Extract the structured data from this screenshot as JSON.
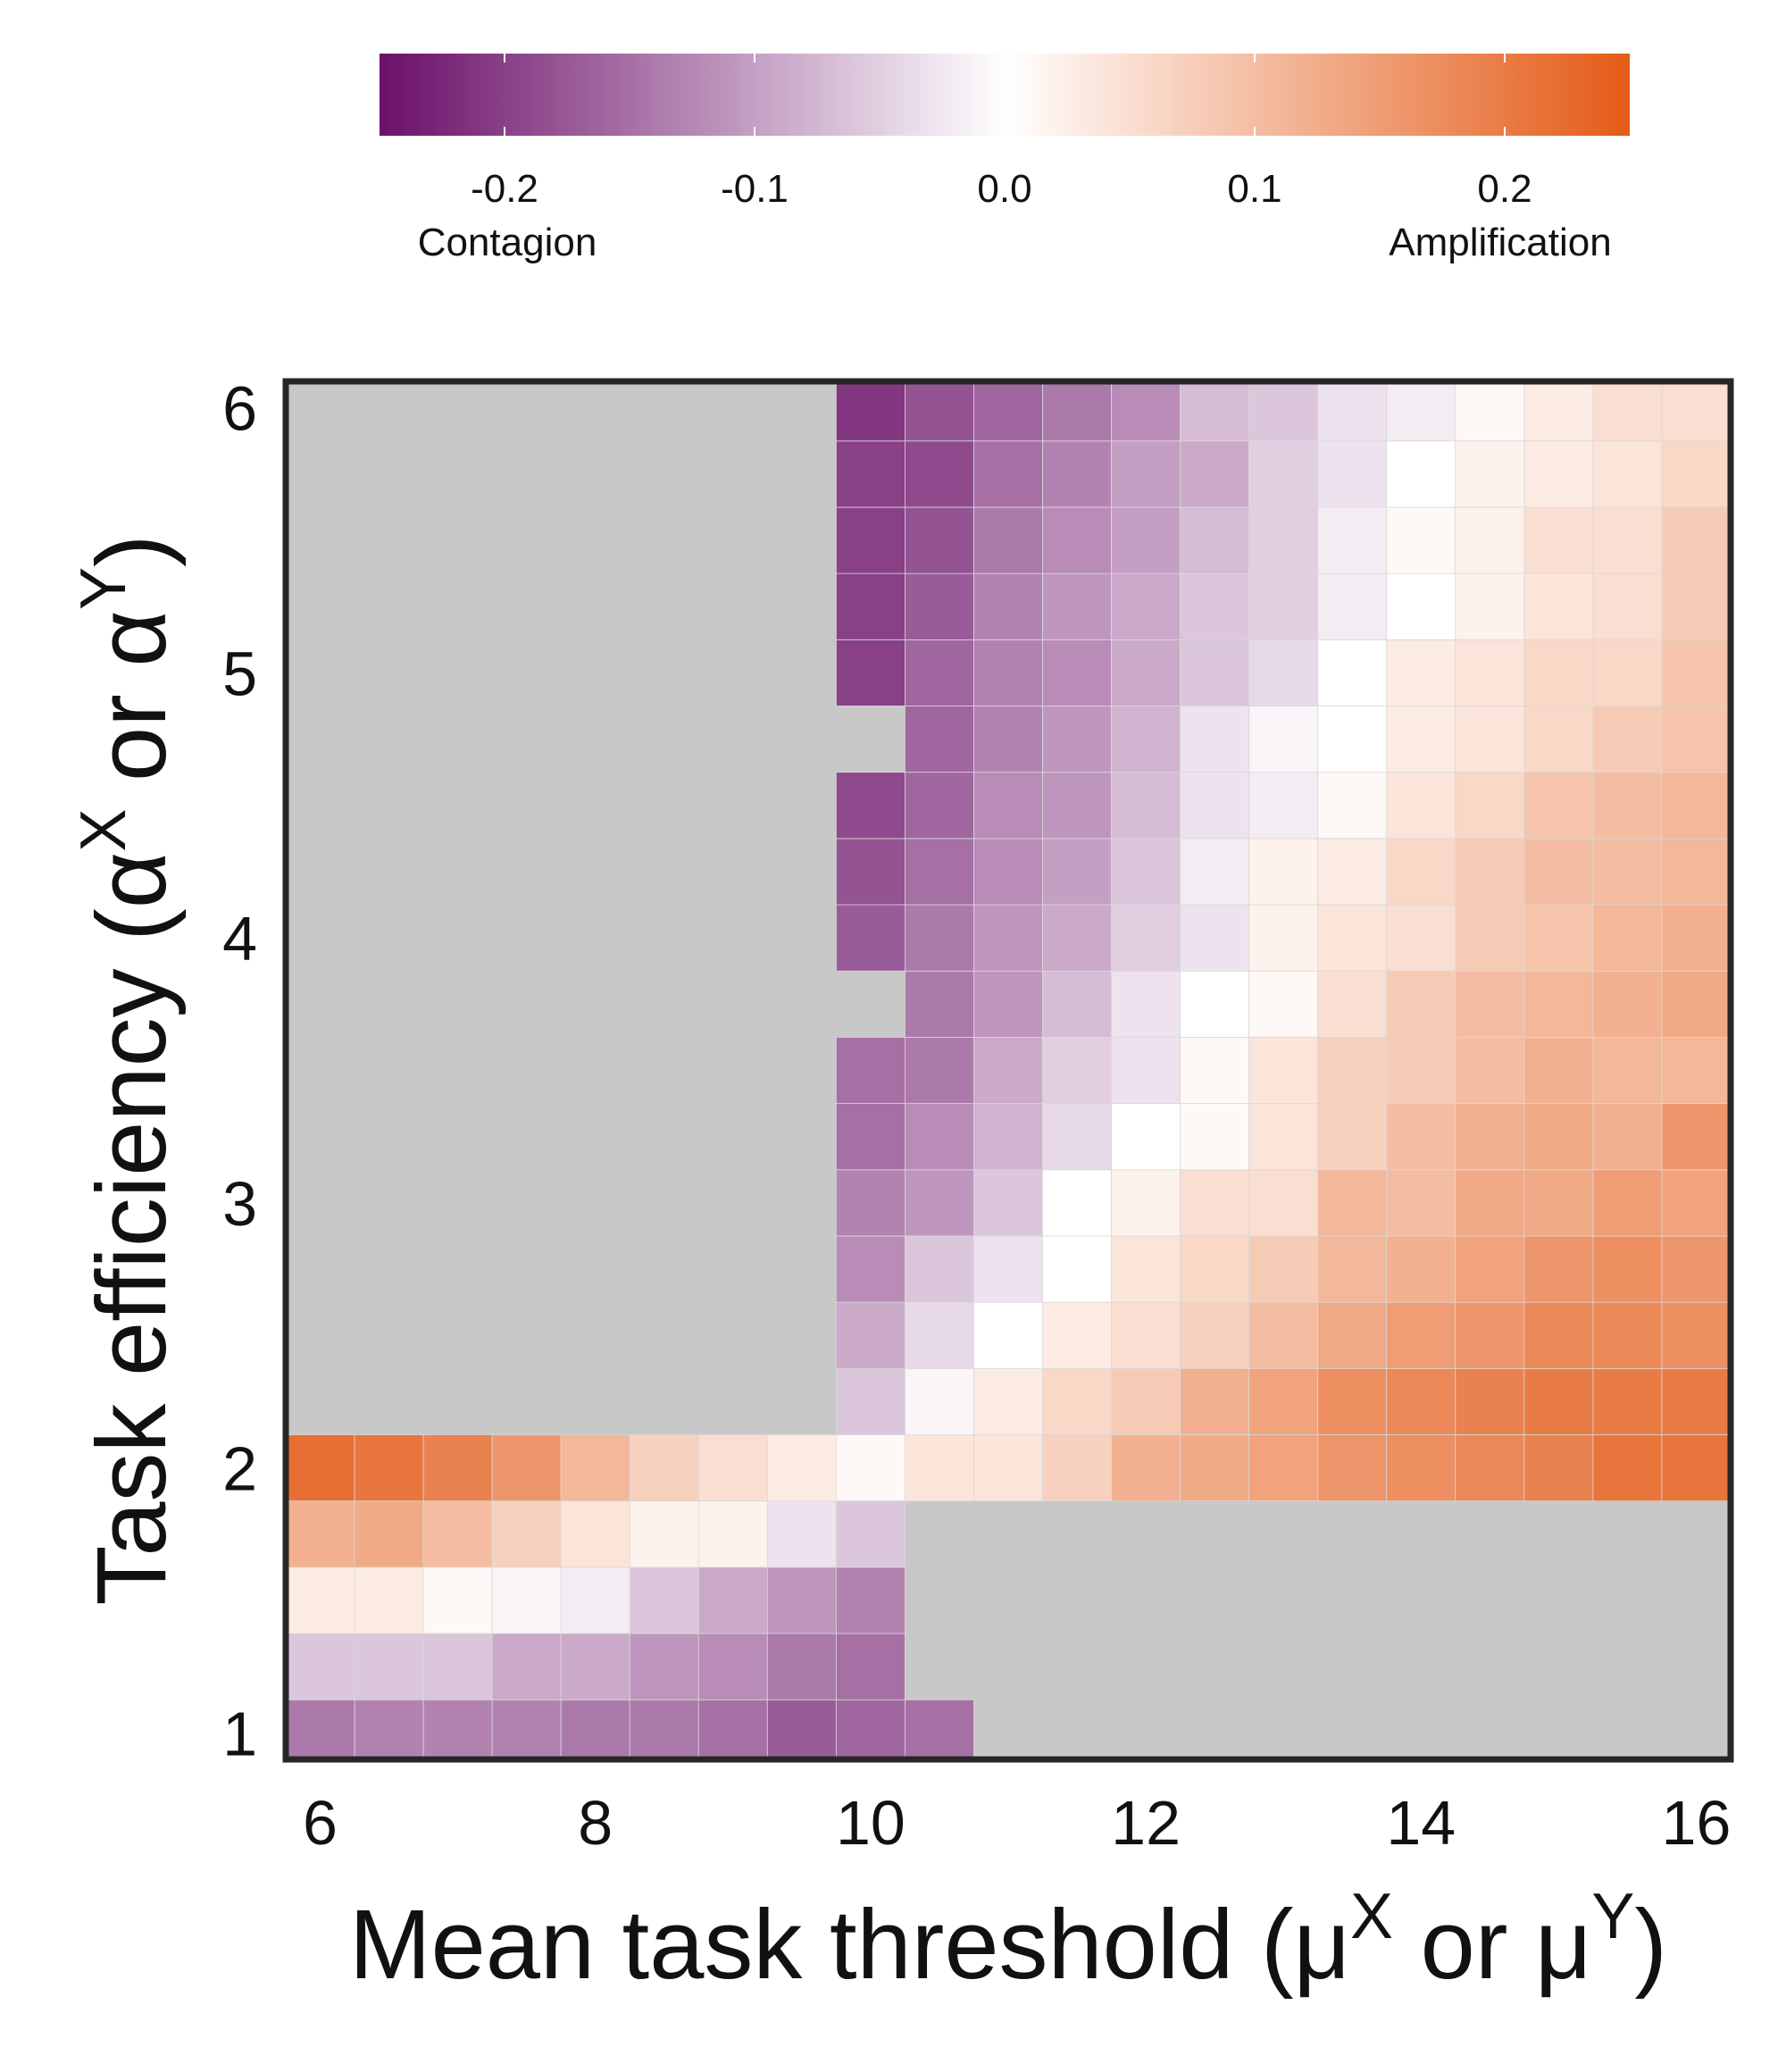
{
  "chart_data": {
    "type": "heatmap",
    "xlabel": "Mean task threshold (μX or μY)",
    "ylabel": "Task efficiency (αX or αY)",
    "x_ticks": [
      "6",
      "8",
      "10",
      "12",
      "14",
      "16"
    ],
    "y_ticks": [
      "1",
      "2",
      "3",
      "4",
      "5",
      "6"
    ],
    "xlim": [
      5.75,
      16.25
    ],
    "ylim": [
      0.9,
      6.1
    ],
    "x_values": [
      6,
      6.5,
      7,
      7.5,
      8,
      8.5,
      9,
      9.5,
      10,
      10.5,
      11,
      11.5,
      12,
      12.5,
      13,
      13.5,
      14,
      14.5,
      15,
      15.5,
      16
    ],
    "y_values": [
      1,
      1.25,
      1.5,
      1.75,
      2,
      2.25,
      2.5,
      2.75,
      3,
      3.25,
      3.5,
      3.75,
      4,
      4.25,
      4.5,
      4.75,
      5,
      5.25,
      5.5,
      5.75,
      6
    ],
    "missing_color": "#c8c8c8",
    "colorbar": {
      "range": [
        -0.25,
        0.25
      ],
      "ticks": [
        "-0.2",
        "-0.1",
        "0.0",
        "0.1",
        "0.2"
      ],
      "tick_values": [
        -0.2,
        -0.1,
        0.0,
        0.1,
        0.2
      ],
      "low_label": "Contagion",
      "high_label": "Amplification",
      "low_color": "#6b1069",
      "mid_color": "#ffffff",
      "high_color": "#e45b17"
    },
    "z": [
      [
        -0.14,
        -0.13,
        -0.13,
        -0.13,
        -0.14,
        -0.14,
        -0.15,
        -0.17,
        -0.16,
        -0.15,
        null,
        null,
        null,
        null,
        null,
        null,
        null,
        null,
        null,
        null,
        null
      ],
      [
        -0.06,
        -0.06,
        -0.06,
        -0.09,
        -0.09,
        -0.11,
        -0.12,
        -0.14,
        -0.15,
        null,
        null,
        null,
        null,
        null,
        null,
        null,
        null,
        null,
        null,
        null,
        null
      ],
      [
        0.03,
        0.03,
        0.01,
        -0.01,
        -0.02,
        -0.06,
        -0.09,
        -0.11,
        -0.13,
        null,
        null,
        null,
        null,
        null,
        null,
        null,
        null,
        null,
        null,
        null,
        null
      ],
      [
        0.12,
        0.13,
        0.1,
        0.07,
        0.04,
        0.02,
        0.02,
        -0.03,
        -0.06,
        null,
        null,
        null,
        null,
        null,
        null,
        null,
        null,
        null,
        null,
        null,
        null
      ],
      [
        0.22,
        0.21,
        0.19,
        0.16,
        0.11,
        0.07,
        0.05,
        0.03,
        0.01,
        0.04,
        0.04,
        0.07,
        0.12,
        0.13,
        0.14,
        0.16,
        0.17,
        0.18,
        0.19,
        0.21,
        0.21
      ],
      [
        null,
        null,
        null,
        null,
        null,
        null,
        null,
        null,
        -0.06,
        -0.01,
        0.03,
        0.06,
        0.08,
        0.12,
        0.14,
        0.17,
        0.18,
        0.19,
        0.2,
        0.2,
        0.2
      ],
      [
        null,
        null,
        null,
        null,
        null,
        null,
        null,
        null,
        -0.09,
        -0.04,
        0.0,
        0.03,
        0.05,
        0.07,
        0.1,
        0.13,
        0.15,
        0.16,
        0.18,
        0.18,
        0.17
      ],
      [
        null,
        null,
        null,
        null,
        null,
        null,
        null,
        null,
        -0.12,
        -0.06,
        -0.03,
        0.0,
        0.04,
        0.06,
        0.08,
        0.11,
        0.12,
        0.14,
        0.16,
        0.17,
        0.16
      ],
      [
        null,
        null,
        null,
        null,
        null,
        null,
        null,
        null,
        -0.13,
        -0.11,
        -0.06,
        0.0,
        0.02,
        0.05,
        0.05,
        0.11,
        0.1,
        0.13,
        0.13,
        0.15,
        0.14
      ],
      [
        null,
        null,
        null,
        null,
        null,
        null,
        null,
        null,
        -0.15,
        -0.12,
        -0.08,
        -0.04,
        0.0,
        0.01,
        0.04,
        0.07,
        0.1,
        0.12,
        0.13,
        0.12,
        0.16
      ],
      [
        null,
        null,
        null,
        null,
        null,
        null,
        null,
        null,
        -0.15,
        -0.14,
        -0.09,
        -0.05,
        -0.03,
        0.01,
        0.04,
        0.07,
        0.08,
        0.1,
        0.12,
        0.11,
        0.11
      ],
      [
        null,
        null,
        null,
        null,
        null,
        null,
        null,
        null,
        null,
        -0.14,
        -0.11,
        -0.07,
        -0.03,
        0.0,
        0.01,
        0.05,
        0.08,
        0.1,
        0.11,
        0.12,
        0.13
      ],
      [
        null,
        null,
        null,
        null,
        null,
        null,
        null,
        null,
        -0.17,
        -0.14,
        -0.11,
        -0.09,
        -0.05,
        -0.03,
        0.02,
        0.04,
        0.05,
        0.08,
        0.09,
        0.11,
        0.12
      ],
      [
        null,
        null,
        null,
        null,
        null,
        null,
        null,
        null,
        -0.18,
        -0.15,
        -0.12,
        -0.1,
        -0.06,
        -0.02,
        0.02,
        0.03,
        0.06,
        0.08,
        0.1,
        0.1,
        0.11
      ],
      [
        null,
        null,
        null,
        null,
        null,
        null,
        null,
        null,
        -0.19,
        -0.16,
        -0.12,
        -0.11,
        -0.07,
        -0.03,
        -0.02,
        0.01,
        0.04,
        0.06,
        0.09,
        0.1,
        0.11
      ],
      [
        null,
        null,
        null,
        null,
        null,
        null,
        null,
        null,
        null,
        -0.16,
        -0.13,
        -0.11,
        -0.08,
        -0.03,
        -0.01,
        0.0,
        0.03,
        0.04,
        0.06,
        0.08,
        0.09
      ],
      [
        null,
        null,
        null,
        null,
        null,
        null,
        null,
        null,
        -0.2,
        -0.16,
        -0.13,
        -0.12,
        -0.09,
        -0.06,
        -0.04,
        0.0,
        0.03,
        0.04,
        0.06,
        0.06,
        0.09
      ],
      [
        null,
        null,
        null,
        null,
        null,
        null,
        null,
        null,
        -0.2,
        -0.17,
        -0.13,
        -0.11,
        -0.09,
        -0.06,
        -0.05,
        -0.02,
        0.0,
        0.02,
        0.04,
        0.05,
        0.08
      ],
      [
        null,
        null,
        null,
        null,
        null,
        null,
        null,
        null,
        -0.2,
        -0.18,
        -0.14,
        -0.12,
        -0.1,
        -0.07,
        -0.05,
        -0.02,
        0.01,
        0.02,
        0.05,
        0.05,
        0.08
      ],
      [
        null,
        null,
        null,
        null,
        null,
        null,
        null,
        null,
        -0.2,
        -0.19,
        -0.15,
        -0.13,
        -0.1,
        -0.09,
        -0.05,
        -0.03,
        0.0,
        0.02,
        0.03,
        0.04,
        0.06
      ],
      [
        null,
        null,
        null,
        null,
        null,
        null,
        null,
        null,
        -0.21,
        -0.18,
        -0.16,
        -0.14,
        -0.12,
        -0.07,
        -0.06,
        -0.03,
        -0.02,
        0.01,
        0.03,
        0.05,
        0.05
      ]
    ]
  }
}
